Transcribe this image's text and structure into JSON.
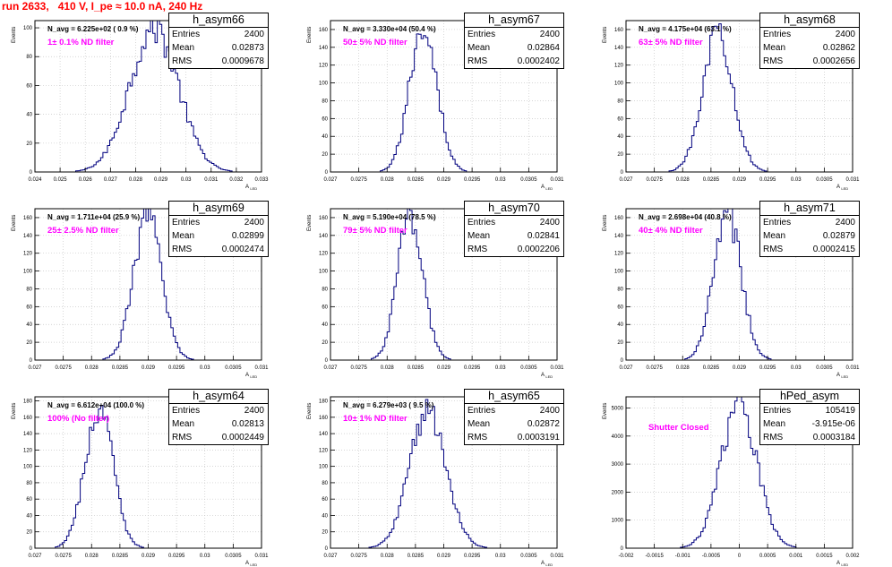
{
  "header": {
    "run_title": "run 2633,   410 V, I_pe ≈ 10.0 nA, 240 Hz"
  },
  "axis_titles": {
    "y": "Events",
    "x": "A",
    "x_sub": "LED"
  },
  "stats_labels": {
    "entries": "Entries",
    "mean": "Mean",
    "rms": "RMS"
  },
  "colors": {
    "histogram": "#00007f",
    "title": "#ff0000",
    "filter_text": "#ff00ff",
    "grid": "#c8c8c8"
  },
  "chart_data": [
    {
      "type": "bar",
      "name": "h_asym66",
      "annotation": "N_avg = 6.225e+02 ( 0.9 %)",
      "filter_label": "1± 0.1% ND filter",
      "entries": "2400",
      "mean": "0.02873",
      "rms": "0.0009678",
      "xlim": [
        0.024,
        0.033
      ],
      "ylim": [
        0,
        105
      ],
      "xticks": [
        "0.024",
        "0.025",
        "0.026",
        "0.027",
        "0.028",
        "0.029",
        "0.03",
        "0.031",
        "0.032",
        "0.033"
      ],
      "yticks": [
        "0",
        "20",
        "40",
        "60",
        "80",
        "100"
      ],
      "peak": 100,
      "mean_value": 0.02873,
      "rms_value": 0.0009678,
      "bins": 100,
      "grid": true
    },
    {
      "type": "bar",
      "name": "h_asym67",
      "annotation": "N_avg = 3.330e+04 (50.4 %)",
      "filter_label": "50± 5% ND filter",
      "entries": "2400",
      "mean": "0.02864",
      "rms": "0.0002402",
      "xlim": [
        0.027,
        0.031
      ],
      "ylim": [
        0,
        170
      ],
      "xticks": [
        "0.027",
        "0.0275",
        "0.028",
        "0.0285",
        "0.029",
        "0.0295",
        "0.03",
        "0.0305",
        "0.031"
      ],
      "yticks": [
        "0",
        "20",
        "40",
        "60",
        "80",
        "100",
        "120",
        "140",
        "160"
      ],
      "peak": 165,
      "mean_value": 0.02864,
      "rms_value": 0.0002402,
      "bins": 100,
      "grid": true
    },
    {
      "type": "bar",
      "name": "h_asym68",
      "annotation": "N_avg = 4.175e+04 (63.1 %)",
      "filter_label": "63± 5% ND filter",
      "entries": "2400",
      "mean": "0.02862",
      "rms": "0.0002656",
      "xlim": [
        0.027,
        0.031
      ],
      "ylim": [
        0,
        170
      ],
      "xticks": [
        "0.027",
        "0.0275",
        "0.028",
        "0.0285",
        "0.029",
        "0.0295",
        "0.03",
        "0.0305",
        "0.031"
      ],
      "yticks": [
        "0",
        "20",
        "40",
        "60",
        "80",
        "100",
        "120",
        "140",
        "160"
      ],
      "peak": 160,
      "mean_value": 0.02862,
      "rms_value": 0.0002656,
      "bins": 100,
      "grid": true
    },
    {
      "type": "bar",
      "name": "h_asym69",
      "annotation": "N_avg = 1.711e+04 (25.9 %)",
      "filter_label": "25± 2.5% ND filter",
      "entries": "2400",
      "mean": "0.02899",
      "rms": "0.0002474",
      "xlim": [
        0.027,
        0.031
      ],
      "ylim": [
        0,
        170
      ],
      "xticks": [
        "0.027",
        "0.0275",
        "0.028",
        "0.0285",
        "0.029",
        "0.0295",
        "0.03",
        "0.0305",
        "0.031"
      ],
      "yticks": [
        "0",
        "20",
        "40",
        "60",
        "80",
        "100",
        "120",
        "140",
        "160"
      ],
      "peak": 160,
      "mean_value": 0.02899,
      "rms_value": 0.0002474,
      "bins": 100,
      "grid": true
    },
    {
      "type": "bar",
      "name": "h_asym70",
      "annotation": "N_avg = 5.190e+04 (78.5 %)",
      "filter_label": "79± 5% ND filter",
      "entries": "2400",
      "mean": "0.02841",
      "rms": "0.0002206",
      "xlim": [
        0.027,
        0.031
      ],
      "ylim": [
        0,
        170
      ],
      "xticks": [
        "0.027",
        "0.0275",
        "0.028",
        "0.0285",
        "0.029",
        "0.0295",
        "0.03",
        "0.0305",
        "0.031"
      ],
      "yticks": [
        "0",
        "20",
        "40",
        "60",
        "80",
        "100",
        "120",
        "140",
        "160"
      ],
      "peak": 165,
      "mean_value": 0.02841,
      "rms_value": 0.0002206,
      "bins": 100,
      "grid": true
    },
    {
      "type": "bar",
      "name": "h_asym71",
      "annotation": "N_avg = 2.698e+04 (40.8 %)",
      "filter_label": "40± 4% ND filter",
      "entries": "2400",
      "mean": "0.02879",
      "rms": "0.0002415",
      "xlim": [
        0.027,
        0.031
      ],
      "ylim": [
        0,
        170
      ],
      "xticks": [
        "0.027",
        "0.0275",
        "0.028",
        "0.0285",
        "0.029",
        "0.0295",
        "0.03",
        "0.0305",
        "0.031"
      ],
      "yticks": [
        "0",
        "20",
        "40",
        "60",
        "80",
        "100",
        "120",
        "140",
        "160"
      ],
      "peak": 165,
      "mean_value": 0.02879,
      "rms_value": 0.0002415,
      "bins": 100,
      "grid": true
    },
    {
      "type": "bar",
      "name": "h_asym64",
      "annotation": "N_avg = 6.612e+04 (100.0 %)",
      "filter_label": "100% (No filter)",
      "entries": "2400",
      "mean": "0.02813",
      "rms": "0.0002449",
      "xlim": [
        0.027,
        0.031
      ],
      "ylim": [
        0,
        185
      ],
      "xticks": [
        "0.027",
        "0.0275",
        "0.028",
        "0.0285",
        "0.029",
        "0.0295",
        "0.03",
        "0.0305",
        "0.031"
      ],
      "yticks": [
        "0",
        "20",
        "40",
        "60",
        "80",
        "100",
        "120",
        "140",
        "160",
        "180"
      ],
      "peak": 172,
      "mean_value": 0.02813,
      "rms_value": 0.0002449,
      "bins": 100,
      "grid": true
    },
    {
      "type": "bar",
      "name": "h_asym65",
      "annotation": "N_avg = 6.279e+03 ( 9.5 %)",
      "filter_label": "10± 1% ND filter",
      "entries": "2400",
      "mean": "0.02872",
      "rms": "0.0003191",
      "xlim": [
        0.027,
        0.031
      ],
      "ylim": [
        0,
        185
      ],
      "xticks": [
        "0.027",
        "0.0275",
        "0.028",
        "0.0285",
        "0.029",
        "0.0295",
        "0.03",
        "0.0305",
        "0.031"
      ],
      "yticks": [
        "0",
        "20",
        "40",
        "60",
        "80",
        "100",
        "120",
        "140",
        "160",
        "180"
      ],
      "peak": 170,
      "mean_value": 0.02872,
      "rms_value": 0.0003191,
      "bins": 100,
      "grid": true
    },
    {
      "type": "bar",
      "name": "hPed_asym",
      "annotation": "",
      "filter_label": "Shutter Closed",
      "entries": "105419",
      "mean": "-3.915e-06",
      "rms": "0.0003184",
      "xlim": [
        -0.002,
        0.002
      ],
      "ylim": [
        0,
        5400
      ],
      "xticks": [
        "-0.002",
        "-0.0015",
        "-0.001",
        "-0.0005",
        "0",
        "0.0005",
        "0.001",
        "0.0015",
        "0.002"
      ],
      "yticks": [
        "0",
        "1000",
        "2000",
        "3000",
        "4000",
        "5000"
      ],
      "peak": 5150,
      "mean_value": -3.915e-06,
      "rms_value": 0.0003184,
      "bins": 100,
      "grid": true
    }
  ]
}
